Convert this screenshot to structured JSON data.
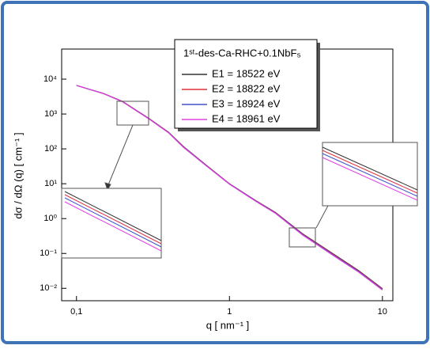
{
  "chart_data": {
    "type": "line",
    "legend_title": "1ˢᵗ-des-Ca-RHC+0.1NbF₅",
    "xlabel": "q [ nm⁻¹ ]",
    "ylabel": "dσ / dΩ (q) [ cm⁻¹ ]",
    "xscale": "log",
    "yscale": "log",
    "xlim": [
      0.08,
      11.7
    ],
    "ylim": [
      0.0044,
      73000
    ],
    "xticks": [
      {
        "value": 0.1,
        "label": "0,1"
      },
      1,
      10
    ],
    "yticks": [
      {
        "value": 0.01,
        "label": "10⁻²"
      },
      {
        "value": 0.1,
        "label": "10⁻¹"
      },
      {
        "value": 1,
        "label": "10⁰"
      },
      {
        "value": 10,
        "label": "10¹"
      },
      {
        "value": 100,
        "label": "10²"
      },
      {
        "value": 1000,
        "label": "10³"
      },
      {
        "value": 10000,
        "label": "10⁴"
      }
    ],
    "x": [
      0.1,
      0.15,
      0.2,
      0.3,
      0.4,
      0.5,
      0.7,
      1,
      1.5,
      2,
      3,
      5,
      7,
      10
    ],
    "series": [
      {
        "name": "E1 = 18522 eV",
        "color": "#333333",
        "values": [
          6600,
          3900,
          2300,
          730,
          300,
          117,
          35,
          10,
          3.2,
          1.5,
          0.37,
          0.085,
          0.032,
          0.0098
        ]
      },
      {
        "name": "E2 = 18822 eV",
        "color": "#e0303a",
        "values": [
          6600,
          3880,
          2280,
          720,
          296,
          115,
          34.5,
          9.9,
          3.15,
          1.47,
          0.36,
          0.082,
          0.031,
          0.0095
        ]
      },
      {
        "name": "E3 = 18924 eV",
        "color": "#4050c8",
        "values": [
          6600,
          3860,
          2260,
          712,
          292,
          113,
          34,
          9.8,
          3.1,
          1.44,
          0.35,
          0.079,
          0.03,
          0.0092
        ]
      },
      {
        "name": "E4 = 18961 eV",
        "color": "#e040e0",
        "values": [
          6600,
          3840,
          2240,
          705,
          288,
          111,
          33.5,
          9.7,
          3.05,
          1.41,
          0.34,
          0.076,
          0.029,
          0.0089
        ]
      }
    ]
  }
}
